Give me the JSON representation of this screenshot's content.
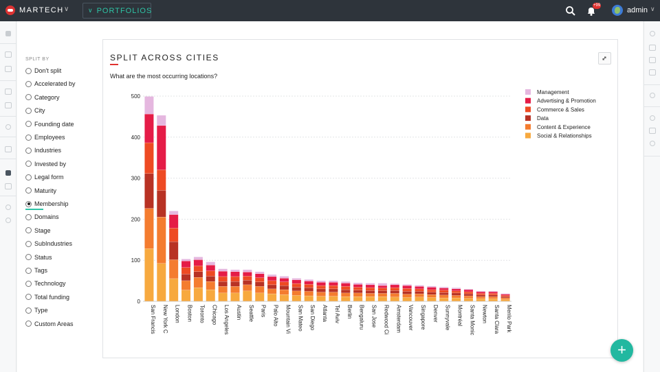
{
  "topbar": {
    "brand": "MARTECH",
    "brand_caret": "∨",
    "portfolios_label": "PORTFOLIOS",
    "portfolios_caret": "∨",
    "notifications_badge": "+99",
    "user_name": "admin",
    "user_caret": "∨",
    "icons": [
      "logo-icon",
      "search-icon",
      "bell-icon",
      "globe-avatar-icon"
    ]
  },
  "sidebar": {
    "title": "SPLIT BY",
    "options": [
      {
        "label": "Don't split",
        "selected": false
      },
      {
        "label": "Accelerated by",
        "selected": false
      },
      {
        "label": "Category",
        "selected": false
      },
      {
        "label": "City",
        "selected": false
      },
      {
        "label": "Founding date",
        "selected": false
      },
      {
        "label": "Employees",
        "selected": false
      },
      {
        "label": "Industries",
        "selected": false
      },
      {
        "label": "Invested by",
        "selected": false
      },
      {
        "label": "Legal form",
        "selected": false
      },
      {
        "label": "Maturity",
        "selected": false
      },
      {
        "label": "Membership",
        "selected": true
      },
      {
        "label": "Domains",
        "selected": false
      },
      {
        "label": "Stage",
        "selected": false
      },
      {
        "label": "SubIndustries",
        "selected": false
      },
      {
        "label": "Status",
        "selected": false
      },
      {
        "label": "Tags",
        "selected": false
      },
      {
        "label": "Technology",
        "selected": false
      },
      {
        "label": "Total funding",
        "selected": false
      },
      {
        "label": "Type",
        "selected": false
      },
      {
        "label": "Custom Areas",
        "selected": false
      }
    ]
  },
  "panel": {
    "title": "SPLIT ACROSS CITIES",
    "subtitle": "What are the most occurring locations?",
    "expand_icon": "collapse-icon",
    "fab_label": "+"
  },
  "colors": {
    "topbar": "#2e343b",
    "accent_teal": "#2ec4a6",
    "accent_red": "#e0312f"
  },
  "chart_data": {
    "type": "bar",
    "stacked": true,
    "categories": [
      "San Francis",
      "New York C",
      "London",
      "Boston",
      "Toronto",
      "Chicago",
      "Los Angeles",
      "Austin",
      "Seattle",
      "Paris",
      "Palo Alto",
      "Mountain Vi",
      "San Mateo",
      "San Diego",
      "Atlanta",
      "Tel Aviv",
      "Berlin",
      "Bengaluru",
      "San Jose",
      "Redwood Ci",
      "Amsterdam",
      "Vancouver",
      "Singapore",
      "Denver",
      "Sunnyvale",
      "Montréal",
      "Santa Monic",
      "Newton",
      "Santa Clara",
      "Menlo Park"
    ],
    "series": [
      {
        "name": "Social & Relationships",
        "color": "#f7a93f",
        "values": [
          128,
          92,
          55,
          27,
          33,
          28,
          20,
          20,
          25,
          20,
          18,
          16,
          14,
          13,
          12,
          12,
          11,
          11,
          11,
          11,
          10,
          9,
          10,
          9,
          8,
          8,
          7,
          6,
          6,
          4
        ]
      },
      {
        "name": "Content & Experience",
        "color": "#f47c2f",
        "values": [
          98,
          113,
          46,
          23,
          25,
          20,
          16,
          16,
          15,
          16,
          12,
          12,
          11,
          11,
          10,
          10,
          9,
          9,
          8,
          8,
          9,
          8,
          8,
          7,
          7,
          6,
          6,
          5,
          5,
          4
        ]
      },
      {
        "name": "Data",
        "color": "#b83224",
        "values": [
          85,
          65,
          44,
          16,
          14,
          13,
          12,
          12,
          11,
          11,
          10,
          10,
          9,
          9,
          8,
          8,
          8,
          7,
          7,
          7,
          7,
          7,
          6,
          6,
          6,
          6,
          5,
          4,
          4,
          3
        ]
      },
      {
        "name": "Commerce & Sales",
        "color": "#ee4a23",
        "values": [
          75,
          50,
          33,
          16,
          14,
          13,
          12,
          12,
          10,
          10,
          10,
          9,
          9,
          8,
          8,
          8,
          8,
          7,
          7,
          6,
          7,
          7,
          6,
          6,
          6,
          5,
          5,
          4,
          4,
          3
        ]
      },
      {
        "name": "Advertising & Promotion",
        "color": "#e51c47",
        "values": [
          70,
          108,
          33,
          16,
          15,
          14,
          13,
          12,
          10,
          10,
          10,
          9,
          9,
          8,
          8,
          8,
          8,
          7,
          7,
          6,
          7,
          7,
          6,
          6,
          5,
          5,
          5,
          4,
          4,
          3
        ]
      },
      {
        "name": "Management",
        "color": "#e5b7df",
        "values": [
          43,
          25,
          9,
          5,
          7,
          8,
          6,
          5,
          6,
          5,
          5,
          5,
          4,
          4,
          4,
          4,
          4,
          4,
          4,
          6,
          3,
          3,
          3,
          3,
          3,
          3,
          2,
          2,
          2,
          2
        ]
      }
    ],
    "ylim": [
      0,
      500
    ],
    "yticks": [
      0,
      100,
      200,
      300,
      400,
      500
    ],
    "legend_order": [
      "Management",
      "Advertising & Promotion",
      "Commerce & Sales",
      "Data",
      "Content & Experience",
      "Social & Relationships"
    ],
    "legend_position": "top-right",
    "grid": true
  }
}
